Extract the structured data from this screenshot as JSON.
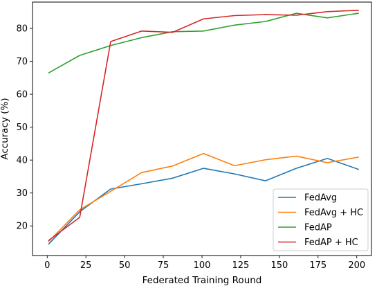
{
  "chart_data": {
    "type": "line",
    "xlabel": "Federated Training Round",
    "ylabel": "Accuracy (%)",
    "xlim": [
      -9.5,
      209.5
    ],
    "ylim": [
      11,
      88
    ],
    "xticks": [
      0,
      25,
      50,
      75,
      100,
      125,
      150,
      175,
      200
    ],
    "yticks": [
      20,
      30,
      40,
      50,
      60,
      70,
      80
    ],
    "grid": false,
    "legend_position": "lower-right",
    "x": [
      1,
      21,
      41,
      61,
      81,
      101,
      121,
      141,
      161,
      181,
      201
    ],
    "series": [
      {
        "name": "FedAvg",
        "color": "#1f77b4",
        "values": [
          14.5,
          24.3,
          31.2,
          32.8,
          34.5,
          37.5,
          35.8,
          33.7,
          37.5,
          40.5,
          37.2
        ]
      },
      {
        "name": "FedAvg + HC",
        "color": "#ff7f0e",
        "values": [
          15.3,
          24.9,
          30.5,
          36.2,
          38.2,
          42.0,
          38.3,
          40.1,
          41.2,
          39.2,
          40.9
        ]
      },
      {
        "name": "FedAP",
        "color": "#2ca02c",
        "values": [
          66.5,
          71.8,
          74.8,
          77.2,
          79.0,
          79.2,
          81.0,
          82.1,
          84.6,
          83.2,
          84.6
        ]
      },
      {
        "name": "FedAP + HC",
        "color": "#d62728",
        "values": [
          15.6,
          22.6,
          76.0,
          79.2,
          78.8,
          82.9,
          83.9,
          84.2,
          84.0,
          85.1,
          85.5
        ]
      }
    ]
  }
}
